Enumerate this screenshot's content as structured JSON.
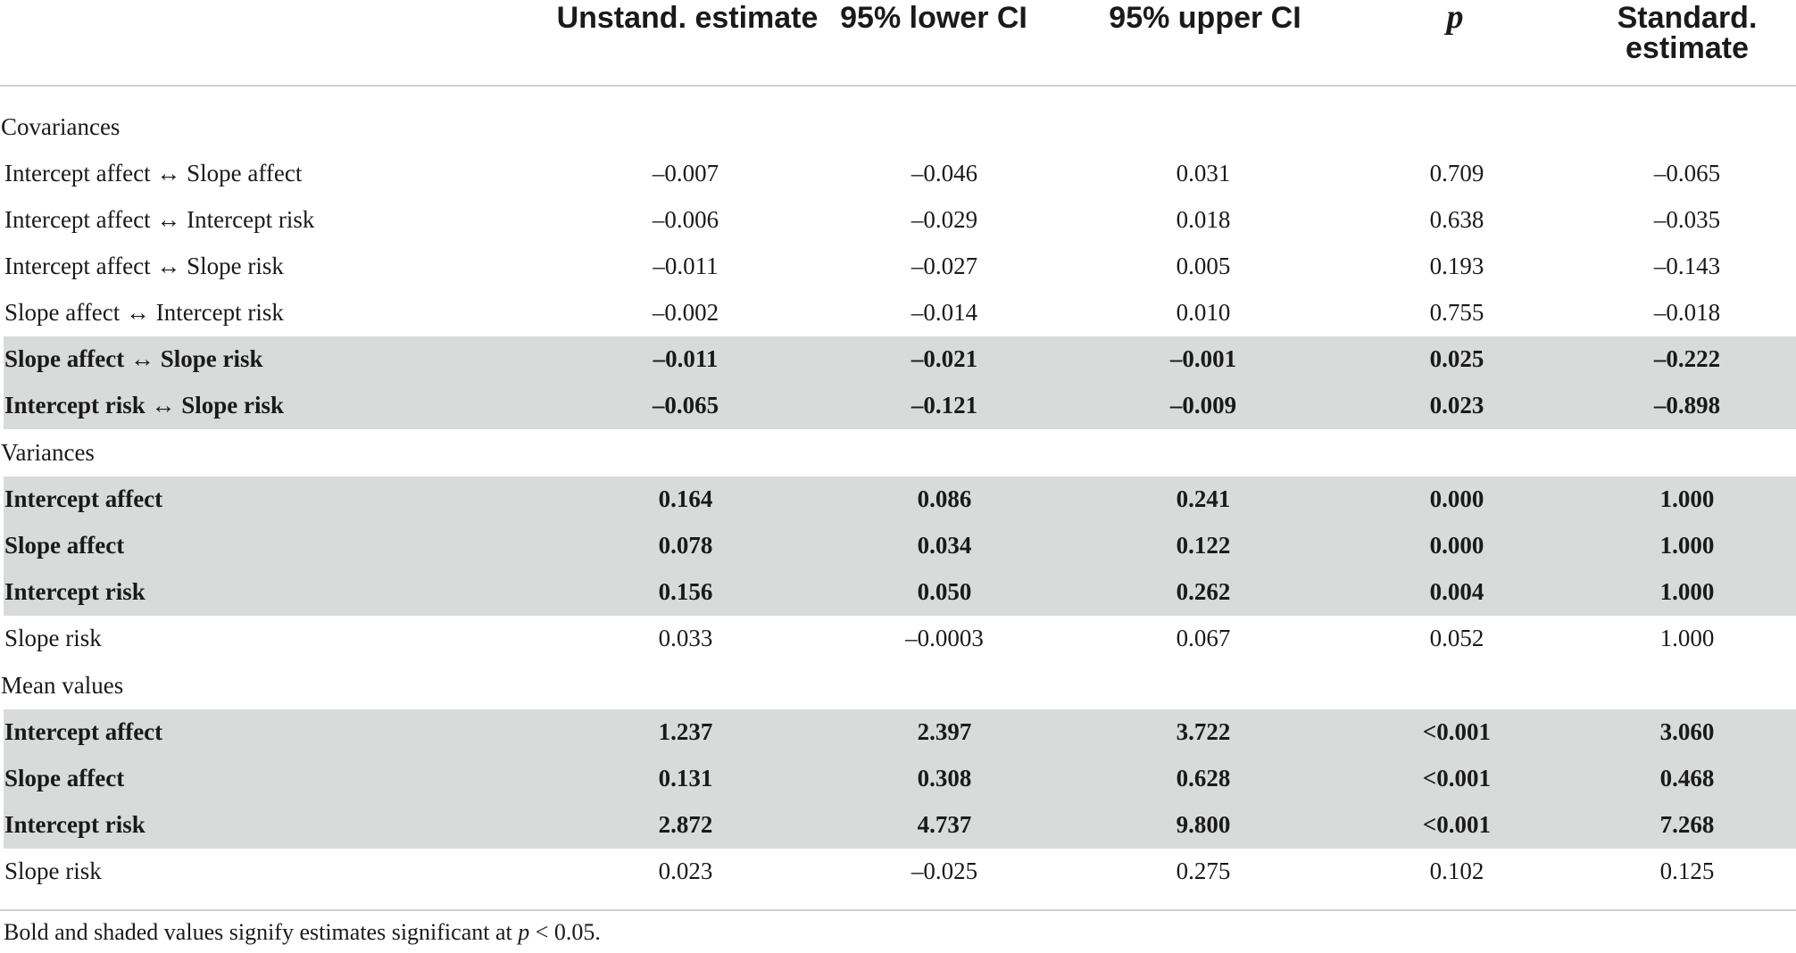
{
  "columns": {
    "unstand": "Unstand. estimate",
    "lower": "95% lower CI",
    "upper": "95% upper CI",
    "p": "p",
    "standard_line1": "Standard.",
    "standard_line2": "estimate"
  },
  "sections": {
    "covariances": "Covariances",
    "variances": "Variances",
    "means": "Mean values"
  },
  "rows": [
    {
      "label": "Intercept affect ↔ Slope affect",
      "unstand": "–0.007",
      "lower": "–0.046",
      "upper": "0.031",
      "p": "0.709",
      "standard": "–0.065",
      "significant": false
    },
    {
      "label": "Intercept affect ↔ Intercept risk",
      "unstand": "–0.006",
      "lower": "–0.029",
      "upper": "0.018",
      "p": "0.638",
      "standard": "–0.035",
      "significant": false
    },
    {
      "label": "Intercept affect ↔ Slope risk",
      "unstand": "–0.011",
      "lower": "–0.027",
      "upper": "0.005",
      "p": "0.193",
      "standard": "–0.143",
      "significant": false
    },
    {
      "label": "Slope affect ↔ Intercept risk",
      "unstand": "–0.002",
      "lower": "–0.014",
      "upper": "0.010",
      "p": "0.755",
      "standard": "–0.018",
      "significant": false
    },
    {
      "label": "Slope affect ↔ Slope risk",
      "unstand": "–0.011",
      "lower": "–0.021",
      "upper": "–0.001",
      "p": "0.025",
      "standard": "–0.222",
      "significant": true
    },
    {
      "label": "Intercept risk ↔ Slope risk",
      "unstand": "–0.065",
      "lower": "–0.121",
      "upper": "–0.009",
      "p": "0.023",
      "standard": "–0.898",
      "significant": true
    },
    {
      "label": "Intercept affect",
      "unstand": "0.164",
      "lower": "0.086",
      "upper": "0.241",
      "p": "0.000",
      "standard": "1.000",
      "significant": true
    },
    {
      "label": "Slope affect",
      "unstand": "0.078",
      "lower": "0.034",
      "upper": "0.122",
      "p": "0.000",
      "standard": "1.000",
      "significant": true
    },
    {
      "label": "Intercept risk",
      "unstand": "0.156",
      "lower": "0.050",
      "upper": "0.262",
      "p": "0.004",
      "standard": "1.000",
      "significant": true
    },
    {
      "label": "Slope risk",
      "unstand": "0.033",
      "lower": "–0.0003",
      "upper": "0.067",
      "p": "0.052",
      "standard": "1.000",
      "significant": false
    },
    {
      "label": "Intercept affect",
      "unstand": "1.237",
      "lower": "2.397",
      "upper": "3.722",
      "p": "<0.001",
      "standard": "3.060",
      "significant": true
    },
    {
      "label": "Slope affect",
      "unstand": "0.131",
      "lower": "0.308",
      "upper": "0.628",
      "p": "<0.001",
      "standard": "0.468",
      "significant": true
    },
    {
      "label": "Intercept risk",
      "unstand": "2.872",
      "lower": "4.737",
      "upper": "9.800",
      "p": "<0.001",
      "standard": "7.268",
      "significant": true
    },
    {
      "label": "Slope risk",
      "unstand": "0.023",
      "lower": "–0.025",
      "upper": "0.275",
      "p": "0.102",
      "standard": "0.125",
      "significant": false
    }
  ],
  "footnote": {
    "text_before": "Bold and shaded values signify estimates significant at ",
    "p_symbol": "p",
    "text_after": " < 0.05."
  }
}
